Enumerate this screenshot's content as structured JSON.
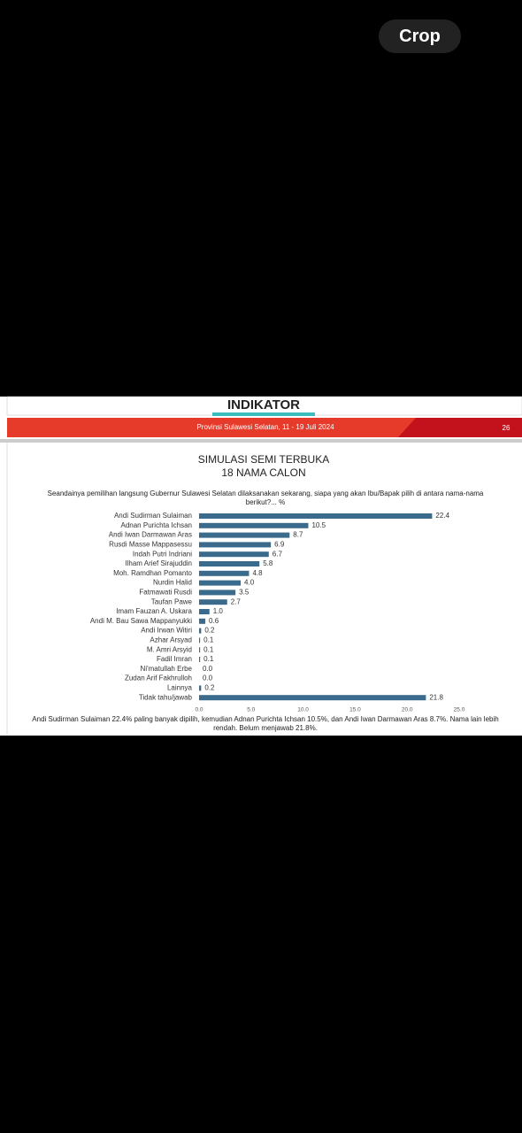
{
  "button": "Crop",
  "slide": {
    "brand": "INDIKATOR",
    "banner": "Provinsi Sulawesi Selatan, 11 - 19 Juli 2024",
    "page": "26",
    "note": "Andi Sudirman Sulaiman 22.4% paling banyak dipilih, kemudian Adnan Purichta Ichsan 10.5%, dan Andi Iwan Darmawan Aras 8.7%. Nama lain lebih rendah. Belum menjawab 21.8%."
  },
  "chart_data": {
    "type": "hbar",
    "title": "SIMULASI SEMI TERBUKA",
    "subtitle": "18 NAMA CALON",
    "question": "Seandainya pemilihan langsung Gubernur Sulawesi Selatan dilaksanakan sekarang, siapa yang akan Ibu/Bapak pilih di antara nama-nama berikut?... %",
    "categories": [
      "Andi Sudirman Sulaiman",
      "Adnan Purichta Ichsan",
      "Andi Iwan Darmawan Aras",
      "Rusdi Masse Mappasessu",
      "Indah Putri Indriani",
      "Ilham Arief Sirajuddin",
      "Moh. Ramdhan Pomanto",
      "Nurdin Halid",
      "Fatmawati Rusdi",
      "Taufan Pawe",
      "Imam Fauzan A. Uskara",
      "Andi M. Bau Sawa Mappanyukki",
      "Andi Irwan Witiri",
      "Azhar Arsyad",
      "M. Amri Arsyid",
      "Fadil Imran",
      "Ni'matullah Erbe",
      "Zudan Arif Fakhrulloh",
      "Lainnya",
      "Tidak tahu/jawab"
    ],
    "values": [
      22.4,
      10.5,
      8.7,
      6.9,
      6.7,
      5.8,
      4.8,
      4.0,
      3.5,
      2.7,
      1.0,
      0.6,
      0.2,
      0.1,
      0.1,
      0.1,
      0.0,
      0.0,
      0.2,
      21.8
    ],
    "value_labels": [
      "22.4",
      "10.5",
      "8.7",
      "6.9",
      "6.7",
      "5.8",
      "4.8",
      "4.0",
      "3.5",
      "2.7",
      "1.0",
      "0.6",
      "0.2",
      "0.1",
      "0.1",
      "0.1",
      "0.0",
      "0.0",
      "0.2",
      "21.8"
    ],
    "color": "#3b6b8c",
    "xlim": [
      0,
      25
    ],
    "xticks": [
      {
        "value": 0,
        "label": "0.0"
      },
      {
        "value": 5,
        "label": "5.0"
      },
      {
        "value": 10,
        "label": "10.0"
      },
      {
        "value": 15,
        "label": "15.0"
      },
      {
        "value": 20,
        "label": "20.0"
      },
      {
        "value": 25,
        "label": "25.0"
      }
    ]
  }
}
